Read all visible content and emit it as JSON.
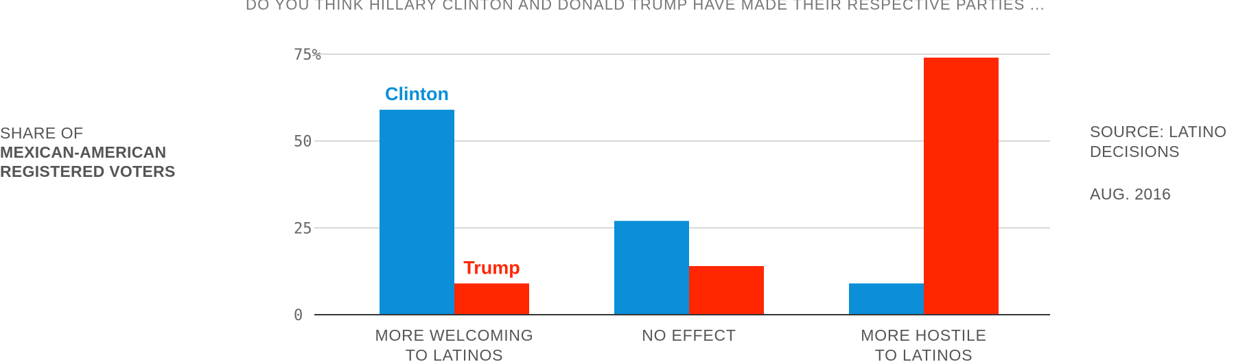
{
  "header": {
    "question": "DO YOU THINK HILLARY CLINTON AND DONALD TRUMP HAVE MADE THEIR RESPECTIVE PARTIES ..."
  },
  "side_label": {
    "line1": "SHARE OF",
    "line2": "MEXICAN-AMERICAN",
    "line3": "REGISTERED VOTERS"
  },
  "source": {
    "text_line1": "SOURCE: LATINO",
    "text_line2": "DECISIONS",
    "date": "AUG. 2016"
  },
  "colors": {
    "clinton": "#0a8fd8",
    "trump": "#ff2600",
    "grid": "#cccccc",
    "axis": "#333333"
  },
  "chart_data": {
    "type": "bar",
    "title": "DO YOU THINK HILLARY CLINTON AND DONALD TRUMP HAVE MADE THEIR RESPECTIVE PARTIES ...",
    "ylabel": "SHARE OF MEXICAN-AMERICAN REGISTERED VOTERS",
    "categories": [
      [
        "MORE WELCOMING",
        "TO LATINOS"
      ],
      [
        "NO EFFECT"
      ],
      [
        "MORE HOSTILE",
        "TO LATINOS"
      ]
    ],
    "series": [
      {
        "name": "Clinton",
        "values": [
          59,
          27,
          9
        ]
      },
      {
        "name": "Trump",
        "values": [
          9,
          14,
          74
        ]
      }
    ],
    "ylim": [
      0,
      75
    ],
    "yticks": [
      0,
      25,
      50,
      75
    ],
    "ytick_labels": [
      "0",
      "25",
      "50",
      "75%"
    ],
    "grid": true
  }
}
